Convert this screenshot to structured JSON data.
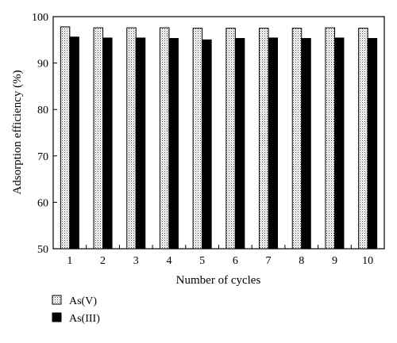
{
  "chart_data": {
    "type": "bar",
    "title": "",
    "xlabel": "Number of cycles",
    "ylabel": "Adsorption efficiency (%)",
    "ylim": [
      50,
      100
    ],
    "yticks": [
      "50",
      "60",
      "70",
      "80",
      "90",
      "100"
    ],
    "categories": [
      "1",
      "2",
      "3",
      "4",
      "5",
      "6",
      "7",
      "8",
      "9",
      "10"
    ],
    "series": [
      {
        "name": "As(V)",
        "pattern": "dotted",
        "color": "#ffffff",
        "values": [
          97.8,
          97.6,
          97.6,
          97.6,
          97.5,
          97.5,
          97.5,
          97.5,
          97.6,
          97.5
        ]
      },
      {
        "name": "As(III)",
        "pattern": "solid",
        "color": "#000000",
        "values": [
          95.6,
          95.4,
          95.4,
          95.3,
          95.0,
          95.3,
          95.4,
          95.3,
          95.4,
          95.3
        ]
      }
    ],
    "legend_position": "bottom-left",
    "grid": false
  }
}
